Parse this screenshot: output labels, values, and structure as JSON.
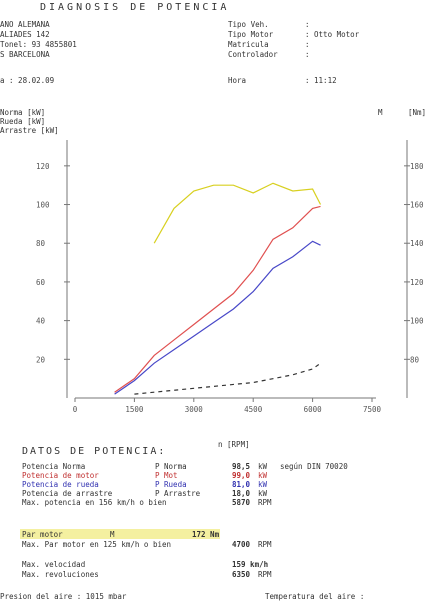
{
  "header": {
    "title": "DIAGNOSIS DE POTENCIA",
    "left": [
      "ANO ALEMANA",
      "ALIADES 142",
      "Tonel: 93 4855801",
      "S BARCELONA"
    ],
    "right": [
      {
        "label": "Tipo Veh.",
        "value": ":"
      },
      {
        "label": "Tipo Motor",
        "value": ": Otto Motor"
      },
      {
        "label": "Matricula",
        "value": ":"
      },
      {
        "label": "Controlador",
        "value": ":"
      }
    ],
    "date": "a : 28.02.09",
    "time_label": "Hora",
    "time": ": 11:12"
  },
  "legend": [
    "Norma [kW]",
    "Rueda [kW]",
    "Arrastre [kW]"
  ],
  "right_axis_label": "M",
  "right_axis_unit": "[Nm]",
  "chart_data": {
    "type": "line",
    "x_label": "n [RPM]",
    "x": [
      1000,
      1500,
      2000,
      2500,
      3000,
      3500,
      4000,
      4500,
      5000,
      5500,
      6000,
      6200
    ],
    "xlim": [
      0,
      7500
    ],
    "xticks": [
      0,
      1500,
      3000,
      4500,
      6000,
      7500
    ],
    "ylim": [
      0,
      130
    ],
    "yticks": [
      20,
      40,
      60,
      80,
      100,
      120
    ],
    "y2lim": [
      60,
      190
    ],
    "y2ticks": [
      80,
      100,
      120,
      140,
      160,
      180
    ],
    "series": [
      {
        "name": "P Mot",
        "color": "#e05050",
        "values": [
          3,
          10,
          22,
          30,
          38,
          46,
          54,
          66,
          82,
          88,
          98,
          99
        ]
      },
      {
        "name": "P Rueda",
        "color": "#4848c8",
        "values": [
          2,
          9,
          18,
          25,
          32,
          39,
          46,
          55,
          67,
          73,
          81,
          79
        ]
      },
      {
        "name": "P Arrastre",
        "color": "#333333",
        "dashed": true,
        "values": [
          null,
          2,
          3,
          4,
          5,
          6,
          7,
          8,
          10,
          12,
          15,
          18
        ]
      },
      {
        "name": "Par motor",
        "color": "#d8d020",
        "axis": "y2",
        "values": [
          null,
          null,
          140,
          158,
          167,
          170,
          170,
          166,
          171,
          167,
          168,
          160
        ]
      }
    ]
  },
  "data_section": {
    "title": "DATOS DE POTENCIA:",
    "rows": [
      {
        "label": "Potencia Norma",
        "sym": "P Norma",
        "value": "98,5",
        "unit": "kW",
        "note": "según DIN 70020",
        "color": "#333"
      },
      {
        "label": "Potencia de motor",
        "sym": "P Mot",
        "value": "99,0",
        "unit": "kW",
        "color": "#c03030"
      },
      {
        "label": "Potencia de rueda",
        "sym": "P Rueda",
        "value": "81,0",
        "unit": "kW",
        "color": "#3030b0"
      },
      {
        "label": "Potencia de arrastre",
        "sym": "P Arrastre",
        "value": "18,0",
        "unit": "kW",
        "color": "#333"
      },
      {
        "label": "Max. potencia en 156 km/h o bien",
        "value": "5870",
        "unit": "RPM",
        "color": "#333"
      },
      {
        "label": "Par motor",
        "sym": "M",
        "value": "172 Nm",
        "color": "#333",
        "hl": true
      },
      {
        "label": "Max. Par motor en 125 km/h o bien",
        "value": "4700",
        "unit": "RPM",
        "color": "#333"
      },
      {
        "label": "Max. velocidad",
        "value": "159 km/h",
        "color": "#333"
      },
      {
        "label": "Max. revoluciones",
        "value": "6350",
        "unit": "RPM",
        "color": "#333"
      }
    ],
    "pressure": "Presion del aire   :  1015 mbar",
    "temperature": "Temperatura del aire :"
  }
}
